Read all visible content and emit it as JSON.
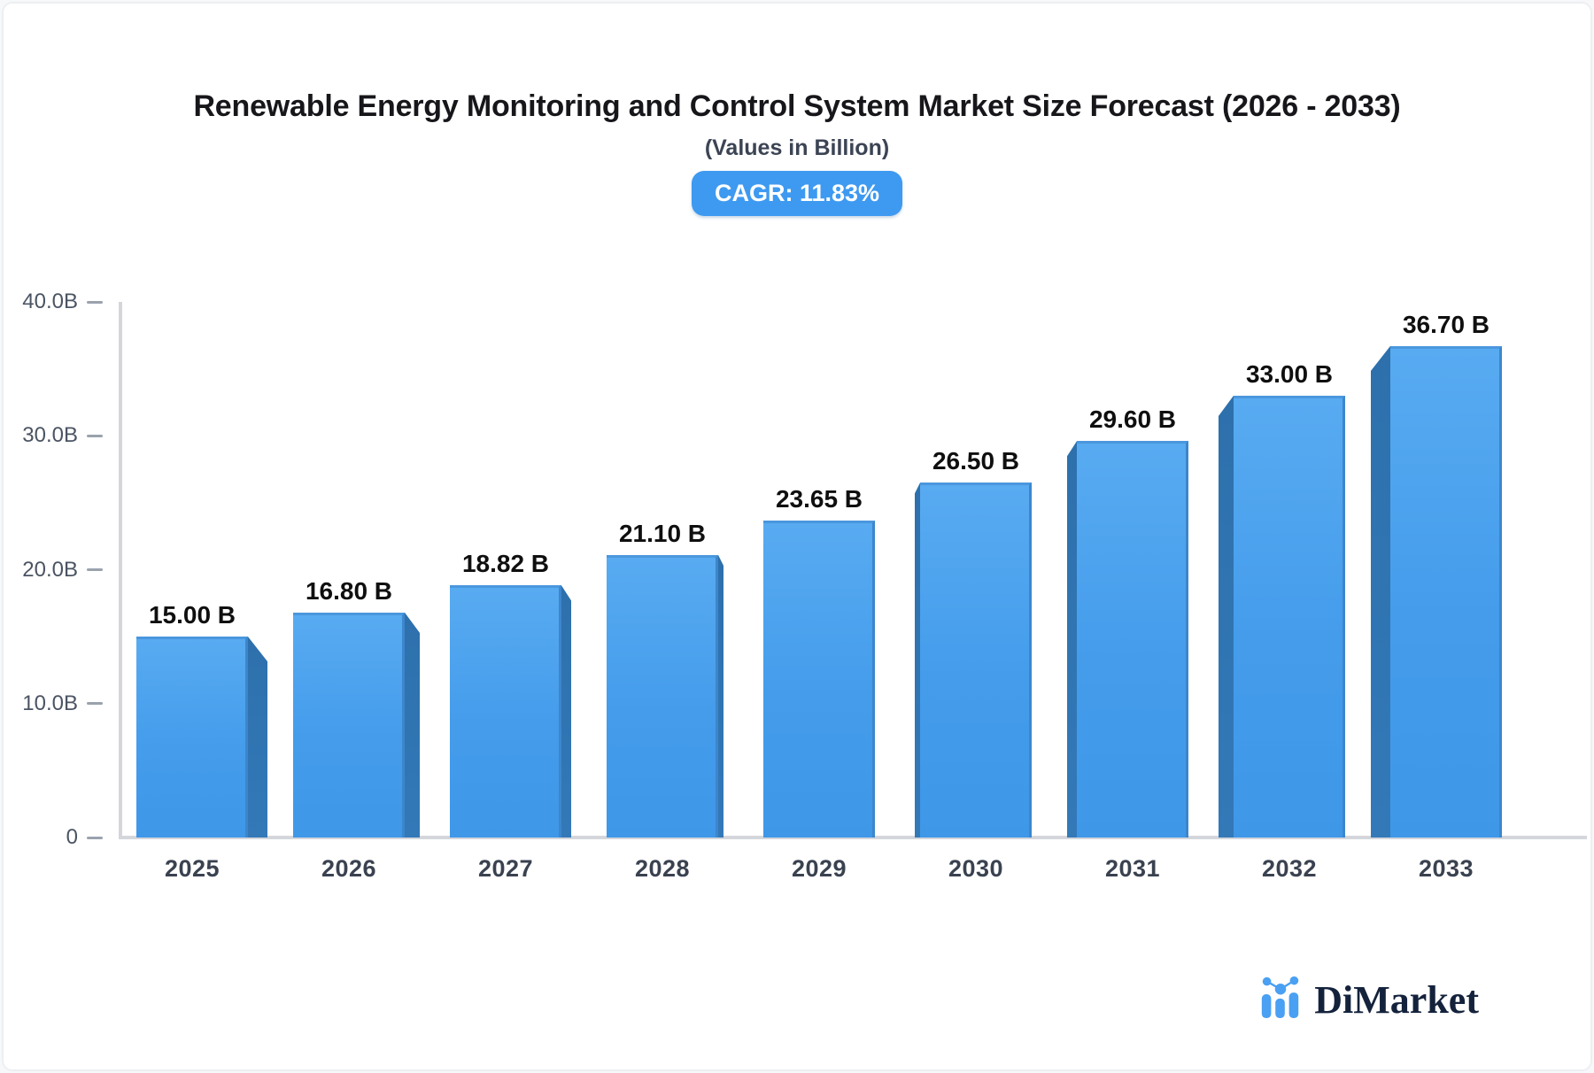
{
  "header": {
    "title": "Renewable Energy Monitoring and Control System Market Size Forecast (2026 - 2033)",
    "subtitle": "(Values in Billion)",
    "cagr_badge": "CAGR: 11.83%"
  },
  "chart_data": {
    "type": "bar",
    "title": "Renewable Energy Monitoring and Control System Market Size Forecast (2026 - 2033)",
    "subtitle": "(Values in Billion)",
    "cagr": "11.83%",
    "categories": [
      "2025",
      "2026",
      "2027",
      "2028",
      "2029",
      "2030",
      "2031",
      "2032",
      "2033"
    ],
    "values": [
      15.0,
      16.8,
      18.82,
      21.1,
      23.65,
      26.5,
      29.6,
      33.0,
      36.7
    ],
    "value_labels": [
      "15.00 B",
      "16.80 B",
      "18.82 B",
      "21.10 B",
      "23.65 B",
      "26.50 B",
      "29.60 B",
      "33.00 B",
      "36.70 B"
    ],
    "xlabel": "",
    "ylabel": "",
    "ylim": [
      0,
      40
    ],
    "y_axis": {
      "min": 0,
      "max": 40,
      "ticks": [
        {
          "label": "40.0B",
          "value": 40
        },
        {
          "label": "30.0B",
          "value": 30
        },
        {
          "label": "20.0B",
          "value": 20
        },
        {
          "label": "10.0B",
          "value": 10
        },
        {
          "label": "0",
          "value": 0
        }
      ]
    },
    "grid": "off",
    "legend": "none",
    "bar_style": "pseudo-3d",
    "bar_color": "#47a0ee",
    "bar_side_color": "#2f75b2"
  },
  "footer": {
    "brand": "DiMarket",
    "brand_icon": "bar-chart-logo-icon"
  },
  "colors": {
    "badge_bg": "#3e9af0",
    "badge_text": "#ffffff",
    "axis_line": "#d4d6db",
    "tick": "#9aa2ad",
    "y_label": "#4b5463",
    "x_label": "#3a4250",
    "value_label": "#0f0f0f",
    "title_text": "#17171b",
    "brand_text": "#14223c",
    "brand_icon": "#4aa0f2"
  }
}
